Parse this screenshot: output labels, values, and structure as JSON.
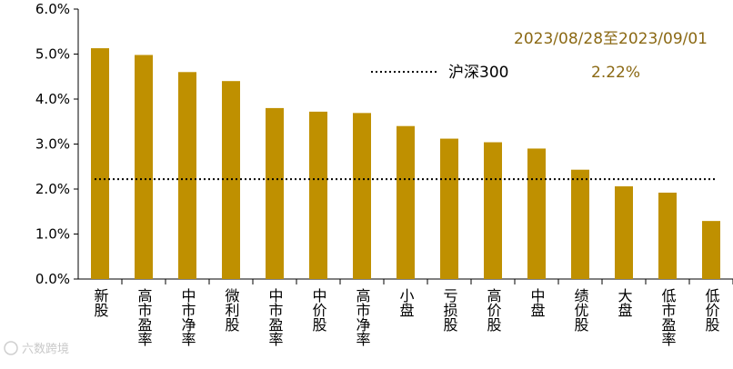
{
  "chart_data": {
    "type": "bar",
    "title": "",
    "xlabel": "",
    "ylabel": "",
    "ylim": [
      0,
      6
    ],
    "y_ticks": [
      "0.0%",
      "1.0%",
      "2.0%",
      "3.0%",
      "4.0%",
      "5.0%",
      "6.0%"
    ],
    "categories": [
      "新股",
      "高市盈率",
      "中市净率",
      "微利股",
      "中市盈率",
      "中价股",
      "高市净率",
      "小盘",
      "亏损股",
      "高价股",
      "中盘",
      "绩优股",
      "大盘",
      "低市盈率",
      "低价股"
    ],
    "values": [
      5.13,
      4.98,
      4.6,
      4.4,
      3.8,
      3.72,
      3.69,
      3.4,
      3.12,
      3.04,
      2.9,
      2.43,
      2.06,
      1.92,
      1.29
    ],
    "bar_color": "#BF9000",
    "reference_line": {
      "name": "沪深300",
      "value": 2.22,
      "value_label": "2.22%",
      "style": "dotted",
      "color": "#000000"
    },
    "date_range": "2023/08/28至2023/09/01",
    "annotation_color": "#8B6914",
    "grid": false
  },
  "watermark": "六数跨境"
}
